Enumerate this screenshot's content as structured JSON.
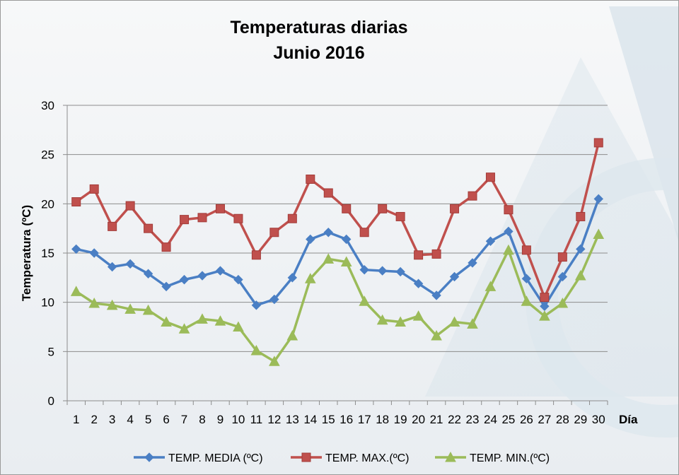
{
  "chart_data": {
    "type": "line",
    "title": [
      "Temperaturas diarias",
      "Junio 2016"
    ],
    "xlabel": "Día",
    "ylabel": "Temperatura (ºC)",
    "ylim": [
      0,
      30
    ],
    "yticks": [
      0,
      5,
      10,
      15,
      20,
      25,
      30
    ],
    "grid": true,
    "legend_position": "bottom",
    "categories": [
      "1",
      "2",
      "3",
      "4",
      "5",
      "6",
      "7",
      "8",
      "9",
      "10",
      "11",
      "12",
      "13",
      "14",
      "15",
      "16",
      "17",
      "18",
      "19",
      "20",
      "21",
      "22",
      "23",
      "24",
      "25",
      "26",
      "27",
      "28",
      "29",
      "30"
    ],
    "series": [
      {
        "name": "TEMP. MEDIA (ºC)",
        "color": "#4a7fc4",
        "marker": "diamond",
        "values": [
          15.4,
          15.0,
          13.6,
          13.9,
          12.9,
          11.6,
          12.3,
          12.7,
          13.2,
          12.3,
          9.7,
          10.3,
          12.5,
          16.4,
          17.1,
          16.4,
          13.3,
          13.2,
          13.1,
          11.9,
          10.7,
          12.6,
          14.0,
          16.2,
          17.2,
          12.4,
          9.6,
          12.6,
          15.4,
          20.5
        ]
      },
      {
        "name": "TEMP. MAX.(ºC)",
        "color": "#c0504d",
        "marker": "square",
        "values": [
          20.2,
          21.5,
          17.7,
          19.8,
          17.5,
          15.6,
          18.4,
          18.6,
          19.5,
          18.5,
          14.8,
          17.1,
          18.5,
          22.5,
          21.1,
          19.5,
          17.1,
          19.5,
          18.7,
          14.8,
          14.9,
          19.5,
          20.8,
          22.7,
          19.4,
          15.3,
          10.5,
          14.6,
          18.7,
          26.2
        ]
      },
      {
        "name": "TEMP. MIN.(ºC)",
        "color": "#9bbb59",
        "marker": "triangle",
        "values": [
          11.1,
          9.9,
          9.7,
          9.3,
          9.2,
          8.0,
          7.3,
          8.3,
          8.1,
          7.5,
          5.1,
          4.0,
          6.6,
          12.4,
          14.4,
          14.1,
          10.1,
          8.2,
          8.0,
          8.6,
          6.6,
          8.0,
          7.8,
          11.6,
          15.3,
          10.1,
          8.6,
          9.9,
          12.7,
          16.9
        ]
      }
    ]
  }
}
